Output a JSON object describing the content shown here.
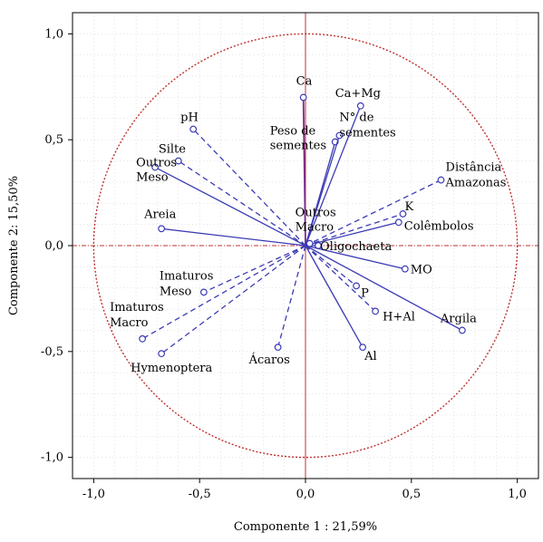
{
  "chart_data": {
    "type": "scatter",
    "subtype": "pca-loading-biplot",
    "xlabel": "Componente 1 : 21,59%",
    "ylabel": "Componente 2: 15,50%",
    "xlim": [
      -1.1,
      1.1
    ],
    "ylim": [
      -1.1,
      1.1
    ],
    "x_ticks": [
      -1.0,
      -0.5,
      0.0,
      0.5,
      1.0
    ],
    "x_tick_labels": [
      "-1,0",
      "-0,5",
      "0,0",
      "0,5",
      "1,0"
    ],
    "y_ticks": [
      1.0,
      0.5,
      0.0,
      -0.5,
      -1.0
    ],
    "y_tick_labels": [
      "1,0",
      "0,5",
      "0,0",
      "-0,5",
      "-1,0"
    ],
    "grid": true,
    "unit_circle": true,
    "colors": {
      "vector": "#3b3bb5",
      "circle": "#c03030",
      "axis_lines": "#c03030",
      "ca_vector": "#7a2a8a",
      "grid": "#c8c8c8"
    },
    "points": [
      {
        "label": "Ca",
        "x": -0.01,
        "y": 0.7,
        "style": "solid-dark"
      },
      {
        "label": "Ca+Mg",
        "x": 0.26,
        "y": 0.66,
        "style": "solid"
      },
      {
        "label": "Peso de sementes",
        "x": 0.14,
        "y": 0.49,
        "style": "solid"
      },
      {
        "label": "N° de sementes",
        "x": 0.16,
        "y": 0.52,
        "style": "solid"
      },
      {
        "label": "Distância Amazonas",
        "x": 0.64,
        "y": 0.31,
        "style": "dashed"
      },
      {
        "label": "K",
        "x": 0.46,
        "y": 0.15,
        "style": "dashed"
      },
      {
        "label": "Colêmbolos",
        "x": 0.44,
        "y": 0.11,
        "style": "solid"
      },
      {
        "label": "Oligochaeta",
        "x": 0.06,
        "y": 0.0,
        "style": "solid"
      },
      {
        "label": "MO",
        "x": 0.47,
        "y": -0.11,
        "style": "solid"
      },
      {
        "label": "P",
        "x": 0.24,
        "y": -0.19,
        "style": "dashed"
      },
      {
        "label": "H+Al",
        "x": 0.33,
        "y": -0.31,
        "style": "dashed"
      },
      {
        "label": "Argila",
        "x": 0.74,
        "y": -0.4,
        "style": "solid"
      },
      {
        "label": "Al",
        "x": 0.27,
        "y": -0.48,
        "style": "solid"
      },
      {
        "label": "Ácaros",
        "x": -0.13,
        "y": -0.48,
        "style": "dashed"
      },
      {
        "label": "Hymenoptera",
        "x": -0.68,
        "y": -0.51,
        "style": "dashed"
      },
      {
        "label": "Imaturos Macro",
        "x": -0.77,
        "y": -0.44,
        "style": "dashed"
      },
      {
        "label": "Imaturos Meso",
        "x": -0.48,
        "y": -0.22,
        "style": "dashed"
      },
      {
        "label": "Areia",
        "x": -0.68,
        "y": 0.08,
        "style": "solid"
      },
      {
        "label": "Outros Meso",
        "x": -0.71,
        "y": 0.37,
        "style": "solid"
      },
      {
        "label": "Silte",
        "x": -0.6,
        "y": 0.4,
        "style": "dashed"
      },
      {
        "label": "pH",
        "x": -0.53,
        "y": 0.55,
        "style": "dashed"
      },
      {
        "label": "Outros Macro",
        "x": 0.02,
        "y": 0.01,
        "style": "solid"
      }
    ]
  }
}
